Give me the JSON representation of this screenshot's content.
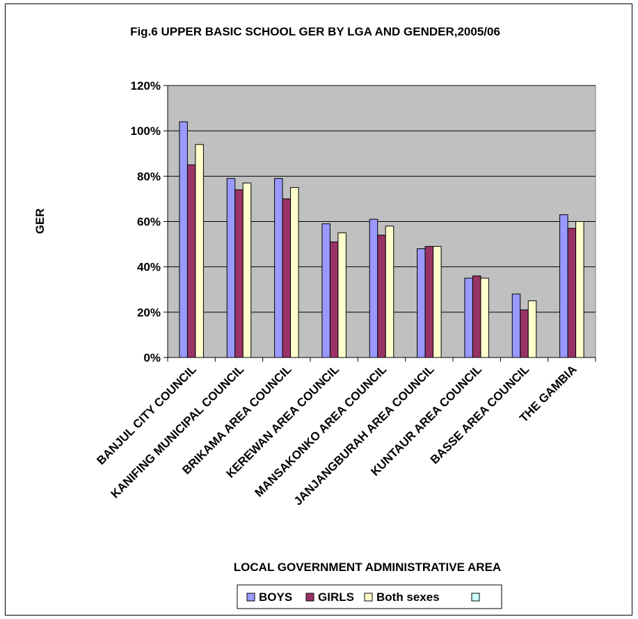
{
  "chart_data": {
    "type": "bar",
    "title": "Fig.6 UPPER BASIC SCHOOL GER BY LGA AND GENDER,2005/06",
    "xlabel": "LOCAL GOVERNMENT ADMINISTRATIVE AREA",
    "ylabel": "GER",
    "ylim": [
      0,
      1.2
    ],
    "ytick_step": 0.2,
    "yticks": [
      "0%",
      "20%",
      "40%",
      "60%",
      "80%",
      "100%",
      "120%"
    ],
    "grid": true,
    "legend": "bottom",
    "plot_background": "#c0c0c0",
    "categories": [
      "BANJUL CITY COUNCIL",
      "KANIFING MUNICIPAL COUNCIL",
      "BRIKAMA AREA COUNCIL",
      "KEREWAN AREA COUNCIL",
      "MANSAKONKO AREA COUNCIL",
      "JANJANGBURAH AREA COUNCIL",
      "KUNTAUR AREA COUNCIL",
      "BASSE AREA COUNCIL",
      "THE GAMBIA"
    ],
    "series": [
      {
        "name": "BOYS",
        "color": "#9999ff",
        "values": [
          1.04,
          0.79,
          0.79,
          0.59,
          0.61,
          0.48,
          0.35,
          0.28,
          0.63
        ]
      },
      {
        "name": "GIRLS",
        "color": "#993366",
        "values": [
          0.85,
          0.74,
          0.7,
          0.51,
          0.54,
          0.49,
          0.36,
          0.21,
          0.57
        ]
      },
      {
        "name": "Both sexes",
        "color": "#ffffcc",
        "values": [
          0.94,
          0.77,
          0.75,
          0.55,
          0.58,
          0.49,
          0.35,
          0.25,
          0.6
        ]
      }
    ],
    "legend_extra_swatch_color": "#ccffff"
  }
}
